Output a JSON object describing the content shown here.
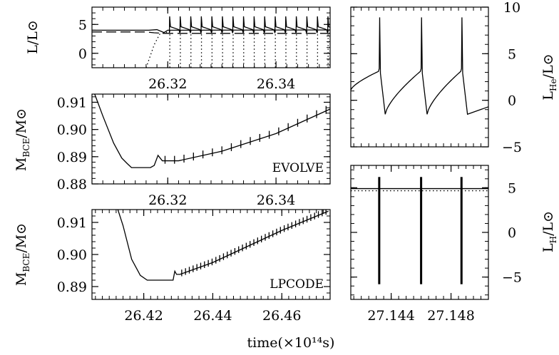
{
  "chart_data": [
    {
      "id": "p1",
      "type": "line",
      "xlim": [
        26.306,
        26.35
      ],
      "ylim": [
        -2.5,
        8.0
      ],
      "xticks": [
        {
          "v": 26.32,
          "label": "26.32"
        },
        {
          "v": 26.34,
          "label": "26.34"
        }
      ],
      "yticks": [
        {
          "v": 0,
          "label": "0"
        },
        {
          "v": 5,
          "label": "5"
        }
      ],
      "yminor_step": 1,
      "xminor_step": 0.002,
      "ylabel": "L/L⊙",
      "series": [
        {
          "style": "solid",
          "points": [
            [
              26.306,
              4.0
            ],
            [
              26.3165,
              4.0
            ],
            [
              26.318,
              4.1
            ],
            [
              26.3193,
              3.6
            ],
            [
              26.32,
              4.0
            ],
            [
              26.35,
              4.05
            ]
          ]
        },
        {
          "style": "dashed",
          "points": [
            [
              26.306,
              3.7
            ],
            [
              26.316,
              3.7
            ],
            [
              26.3175,
              3.55
            ],
            [
              26.3195,
              3.45
            ],
            [
              26.35,
              3.45
            ]
          ]
        },
        {
          "style": "dotted",
          "points": [
            [
              26.316,
              -2.5
            ],
            [
              26.3175,
              1.5
            ],
            [
              26.3185,
              3.3
            ],
            [
              26.32,
              3.7
            ]
          ]
        }
      ],
      "pulses": {
        "start": 26.3203,
        "end": 26.35,
        "interval": 0.00195,
        "max": 6.4,
        "base": 3.5,
        "dotted_low": -2.5
      }
    },
    {
      "id": "p2",
      "type": "line",
      "xlim": [
        26.306,
        26.35
      ],
      "ylim": [
        0.88,
        0.913
      ],
      "xticks": [
        {
          "v": 26.32,
          "label": "26.32"
        },
        {
          "v": 26.34,
          "label": "26.34"
        }
      ],
      "yticks": [
        {
          "v": 0.88,
          "label": "0.88"
        },
        {
          "v": 0.89,
          "label": "0.89"
        },
        {
          "v": 0.9,
          "label": "0.90"
        },
        {
          "v": 0.91,
          "label": "0.91"
        }
      ],
      "yminor_step": 0.002,
      "xminor_step": 0.002,
      "ylabel_main": "M",
      "ylabel_sub": "BCE",
      "ylabel_rest": "/M⊙",
      "annotation": "EVOLVE",
      "series": [
        {
          "style": "solid",
          "points": [
            [
              26.3065,
              0.913
            ],
            [
              26.308,
              0.905
            ],
            [
              26.31,
              0.895
            ],
            [
              26.3115,
              0.8895
            ],
            [
              26.3125,
              0.8875
            ],
            [
              26.3133,
              0.886
            ],
            [
              26.3155,
              0.886
            ],
            [
              26.3168,
              0.886
            ],
            [
              26.3175,
              0.8868
            ],
            [
              26.3182,
              0.8905
            ],
            [
              26.319,
              0.8885
            ],
            [
              26.322,
              0.8885
            ],
            [
              26.33,
              0.892
            ],
            [
              26.34,
              0.8985
            ],
            [
              26.35,
              0.9075
            ]
          ]
        }
      ],
      "spikes": {
        "start": 26.3195,
        "end": 26.35,
        "interval": 0.00175,
        "amp": 0.0018
      }
    },
    {
      "id": "p3",
      "type": "line",
      "xlim": [
        26.405,
        26.474
      ],
      "ylim": [
        0.886,
        0.914
      ],
      "xticks": [
        {
          "v": 26.42,
          "label": "26.42"
        },
        {
          "v": 26.44,
          "label": "26.44"
        },
        {
          "v": 26.46,
          "label": "26.46"
        }
      ],
      "yticks": [
        {
          "v": 0.89,
          "label": "0.89"
        },
        {
          "v": 0.9,
          "label": "0.90"
        },
        {
          "v": 0.91,
          "label": "0.91"
        }
      ],
      "yminor_step": 0.002,
      "xminor_step": 0.002,
      "xlabel": "time(×10¹⁴s)",
      "ylabel_main": "M",
      "ylabel_sub": "BCE",
      "ylabel_rest": "/M⊙",
      "annotation": "LPCODE",
      "series": [
        {
          "style": "solid",
          "points": [
            [
              26.4125,
              0.914
            ],
            [
              26.414,
              0.909
            ],
            [
              26.4165,
              0.8985
            ],
            [
              26.419,
              0.8935
            ],
            [
              26.421,
              0.892
            ],
            [
              26.4285,
              0.892
            ],
            [
              26.429,
              0.8948
            ],
            [
              26.4295,
              0.8938
            ],
            [
              26.4305,
              0.8938
            ],
            [
              26.44,
              0.8975
            ],
            [
              26.45,
              0.9025
            ],
            [
              26.46,
              0.9075
            ],
            [
              26.4735,
              0.9135
            ]
          ]
        }
      ],
      "spikes": {
        "start": 26.431,
        "end": 26.4735,
        "interval": 0.0011,
        "amp": 0.0013
      }
    },
    {
      "id": "p4",
      "type": "line",
      "xlim": [
        27.1413,
        27.1505
      ],
      "ylim": [
        -5.0,
        10.0
      ],
      "yticks": [
        {
          "v": -5,
          "label": "−5"
        },
        {
          "v": 0,
          "label": "0"
        },
        {
          "v": 5,
          "label": "5"
        },
        {
          "v": 10,
          "label": "10"
        }
      ],
      "yminor_step": 1,
      "xminor_step": 0.0005,
      "ylabel_main": "L",
      "ylabel_sub": "He",
      "ylabel_rest": "/L⊙",
      "flashes": [
        27.1432,
        27.146,
        27.1487
      ],
      "flash_peak": 8.9,
      "flash_knee": 3.4,
      "flash_min": -1.5,
      "decay": -1.0,
      "start_level": 1.1,
      "end_level": -0.7
    },
    {
      "id": "p5",
      "type": "line",
      "xlim": [
        27.1413,
        27.1505
      ],
      "ylim": [
        -7.5,
        7.5
      ],
      "xticks": [
        {
          "v": 27.144,
          "label": "27.144"
        },
        {
          "v": 27.148,
          "label": "27.148"
        }
      ],
      "yticks": [
        {
          "v": -5,
          "label": "−5"
        },
        {
          "v": 0,
          "label": "0"
        },
        {
          "v": 5,
          "label": "5"
        }
      ],
      "yminor_step": 1,
      "xminor_step": 0.0005,
      "ylabel_main": "L",
      "ylabel_sub": "H",
      "ylabel_rest": "/L⊙",
      "baseline": 4.9,
      "flashes": [
        27.1432,
        27.146,
        27.1487
      ],
      "flash_top": 6.2,
      "flash_bottom": -5.8
    }
  ]
}
